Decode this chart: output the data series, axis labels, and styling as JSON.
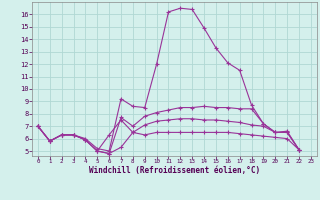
{
  "xlabel": "Windchill (Refroidissement éolien,°C)",
  "bg_color": "#d4f0ec",
  "grid_color": "#b0d8d4",
  "line_color": "#993399",
  "xlim": [
    -0.5,
    23.5
  ],
  "ylim": [
    4.6,
    17.0
  ],
  "xticks": [
    0,
    1,
    2,
    3,
    4,
    5,
    6,
    7,
    8,
    9,
    10,
    11,
    12,
    13,
    14,
    15,
    16,
    17,
    18,
    19,
    20,
    21,
    22,
    23
  ],
  "yticks": [
    5,
    6,
    7,
    8,
    9,
    10,
    11,
    12,
    13,
    14,
    15,
    16
  ],
  "series": [
    {
      "x": [
        0,
        1,
        2,
        3,
        4,
        5,
        6,
        7,
        8,
        9,
        10,
        11,
        12,
        13,
        14,
        15,
        16,
        17,
        18,
        19,
        20,
        21,
        22
      ],
      "y": [
        7.0,
        5.8,
        6.3,
        6.3,
        6.0,
        5.2,
        5.0,
        9.2,
        8.6,
        8.5,
        12.0,
        16.2,
        16.5,
        16.4,
        14.9,
        13.3,
        12.1,
        11.5,
        8.7,
        7.2,
        6.5,
        6.5,
        5.1
      ]
    },
    {
      "x": [
        0,
        1,
        2,
        3,
        4,
        5,
        6,
        7,
        8,
        9,
        10,
        11,
        12,
        13,
        14,
        15,
        16,
        17,
        18,
        19,
        20,
        21,
        22
      ],
      "y": [
        7.0,
        5.8,
        6.3,
        6.3,
        5.9,
        5.0,
        4.8,
        7.7,
        7.0,
        7.8,
        8.1,
        8.3,
        8.5,
        8.5,
        8.6,
        8.5,
        8.5,
        8.4,
        8.4,
        7.2,
        6.5,
        6.6,
        5.1
      ]
    },
    {
      "x": [
        0,
        1,
        2,
        3,
        4,
        5,
        6,
        7,
        8,
        9,
        10,
        11,
        12,
        13,
        14,
        15,
        16,
        17,
        18,
        19,
        20,
        21,
        22
      ],
      "y": [
        7.0,
        5.8,
        6.3,
        6.3,
        5.9,
        5.0,
        6.3,
        7.5,
        6.5,
        7.1,
        7.4,
        7.5,
        7.6,
        7.6,
        7.5,
        7.5,
        7.4,
        7.3,
        7.1,
        7.0,
        6.5,
        6.5,
        5.1
      ]
    },
    {
      "x": [
        0,
        1,
        2,
        3,
        4,
        5,
        6,
        7,
        8,
        9,
        10,
        11,
        12,
        13,
        14,
        15,
        16,
        17,
        18,
        19,
        20,
        21,
        22
      ],
      "y": [
        7.0,
        5.8,
        6.3,
        6.3,
        5.9,
        5.0,
        4.8,
        5.3,
        6.5,
        6.3,
        6.5,
        6.5,
        6.5,
        6.5,
        6.5,
        6.5,
        6.5,
        6.4,
        6.3,
        6.2,
        6.1,
        6.0,
        5.1
      ]
    }
  ]
}
